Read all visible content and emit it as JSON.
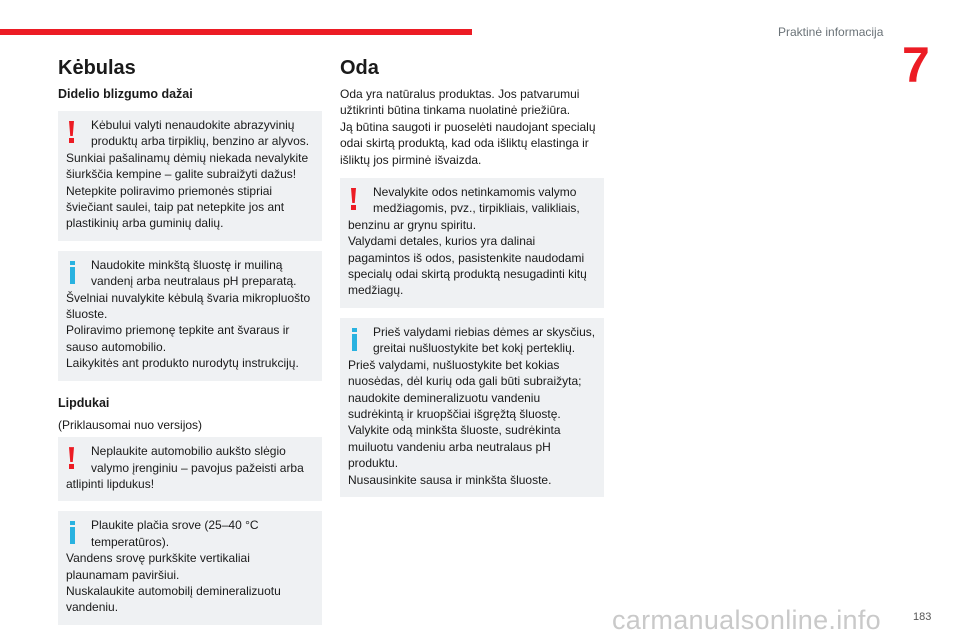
{
  "header": {
    "chapter_title": "Praktinė informacija",
    "chapter_number": "7"
  },
  "left": {
    "title": "Kėbulas",
    "subtitle": "Didelio blizgumo dažai",
    "box1": {
      "type": "warning",
      "text": "Kėbului valyti nenaudokite abrazyvinių produktų arba tirpiklių, benzino ar alyvos. Sunkiai pašalinamų dėmių niekada nevalykite šiurkščia kempine – galite subraižyti dažus! Netepkite poliravimo priemonės stipriai šviečiant saulei, taip pat netepkite jos ant plastikinių arba guminių dalių."
    },
    "box2": {
      "type": "info",
      "lines": [
        "Naudokite minkštą šluostę ir muiliną vandenį arba neutralaus pH preparatą.",
        "Švelniai nuvalykite kėbulą švaria mikropluošto šluoste.",
        "Poliravimo priemonę tepkite ant švaraus ir sauso automobilio.",
        "Laikykitės ant produkto nurodytų instrukcijų."
      ]
    },
    "section2_title": "Lipdukai",
    "section2_note": "(Priklausomai nuo versijos)",
    "box3": {
      "type": "warning",
      "text": "Neplaukite automobilio aukšto slėgio valymo įrenginiu – pavojus pažeisti arba atlipinti lipdukus!"
    },
    "box4": {
      "type": "info",
      "lines": [
        "Plaukite plačia srove (25–40 °C temperatūros).",
        "Vandens srovę purkškite vertikaliai plaunamam paviršiui.",
        "Nuskalaukite automobilį demineralizuotu vandeniu."
      ]
    }
  },
  "right": {
    "title": "Oda",
    "intro": [
      "Oda yra natūralus produktas. Jos patvarumui užtikrinti būtina tinkama nuolatinė priežiūra.",
      "Ją būtina saugoti ir puoselėti naudojant specialų odai skirtą produktą, kad oda išliktų elastinga ir išliktų jos pirminė išvaizda."
    ],
    "box1": {
      "type": "warning",
      "lines": [
        "Nevalykite odos netinkamomis valymo medžiagomis, pvz., tirpikliais, valikliais, benzinu ar grynu spiritu.",
        "Valydami detales, kurios yra dalinai pagamintos iš odos, pasistenkite naudodami specialų odai skirtą produktą nesugadinti kitų medžiagų."
      ]
    },
    "box2": {
      "type": "info",
      "lines": [
        "Prieš valydami riebias dėmes ar skysčius, greitai nušluostykite bet kokį perteklių.",
        "Prieš valydami, nušluostykite bet kokias nuosėdas, dėl kurių oda gali būti subraižyta; naudokite demineralizuotu vandeniu sudrėkintą ir kruopščiai išgręžtą šluostę.",
        "Valykite odą minkšta šluoste, sudrėkinta muiluotu vandeniu arba neutralaus pH produktu.",
        "Nusausinkite sausa ir minkšta šluoste."
      ]
    }
  },
  "footer": {
    "page_number": "183",
    "watermark": "carmanualsonline.info"
  },
  "colors": {
    "accent": "#ec1c24",
    "info": "#29b2e0",
    "box_bg": "#eff1f3"
  }
}
